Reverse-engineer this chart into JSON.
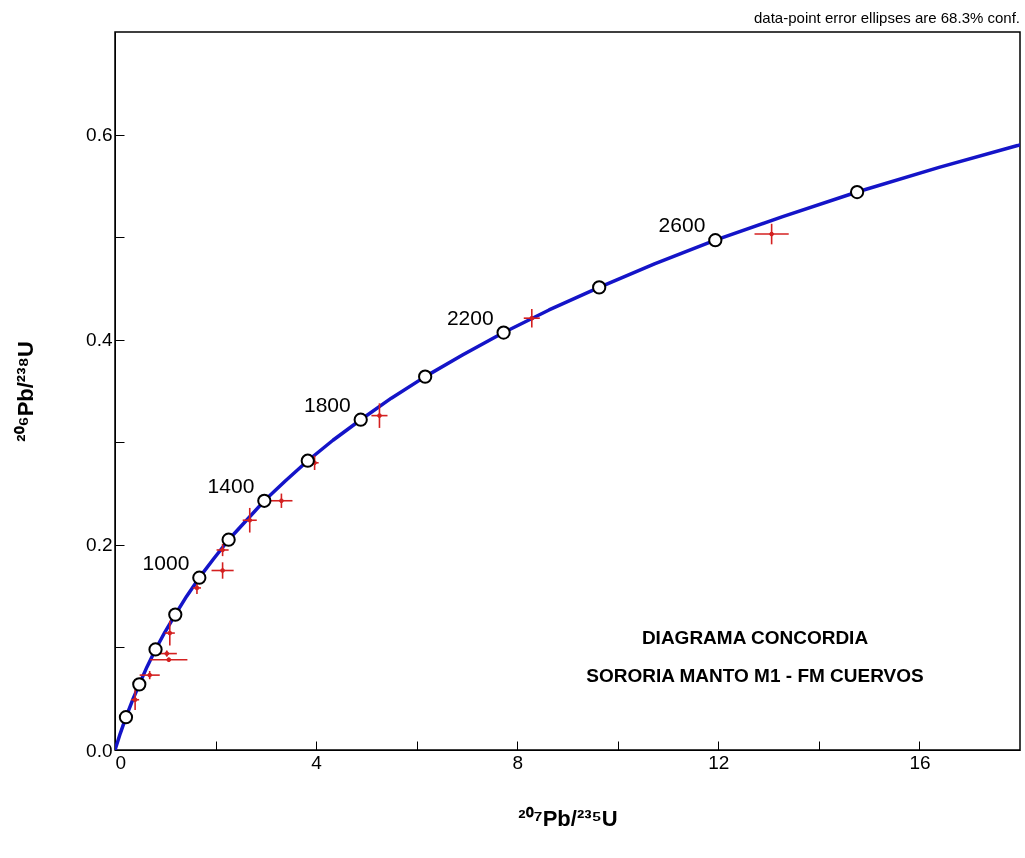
{
  "chart_data": {
    "type": "line",
    "title": "DIAGRAMA CONCORDIA",
    "subtitle": "SORORIA MANTO M1 - FM CUERVOS",
    "xlabel": "²⁰⁷Pb/²³⁵U",
    "ylabel": "²⁰⁶Pb/²³⁸U",
    "xlim": [
      0,
      18
    ],
    "ylim": [
      0,
      0.7
    ],
    "xticks": [
      0,
      {
        "value": 2,
        "label": null
      },
      4,
      {
        "value": 6,
        "label": null
      },
      8,
      {
        "value": 10,
        "label": null
      },
      12,
      {
        "value": 14,
        "label": null
      },
      16
    ],
    "yticks": [
      {
        "value": 0,
        "label": "0.0"
      },
      {
        "value": 0.1,
        "label": null
      },
      0.2,
      {
        "value": 0.3,
        "label": null
      },
      0.4,
      {
        "value": 0.5,
        "label": null
      },
      0.6
    ],
    "line_style": "solid",
    "series": [
      {
        "marker": "none",
        "color": "#1414c8",
        "x": [
          0,
          0.104,
          0.218,
          0.344,
          0.483,
          0.636,
          0.806,
          0.993,
          1.199,
          1.426,
          1.677,
          1.955,
          2.26,
          2.598,
          2.97,
          3.381,
          3.834,
          4.335,
          4.887,
          5.496,
          6.169,
          6.911,
          7.729,
          8.633,
          9.63,
          10.73,
          11.94,
          13.28,
          14.76,
          16.39,
          18
        ],
        "values": [
          0,
          0.016,
          0.032,
          0.048,
          0.064,
          0.081,
          0.098,
          0.115,
          0.132,
          0.15,
          0.168,
          0.186,
          0.205,
          0.223,
          0.243,
          0.262,
          0.282,
          0.302,
          0.322,
          0.343,
          0.364,
          0.385,
          0.407,
          0.429,
          0.451,
          0.474,
          0.497,
          0.52,
          0.544,
          0.568,
          0.59
        ]
      },
      {
        "type": "scatter",
        "color": "#d42020",
        "marker": "circle",
        "x": [
          13.06,
          8.29,
          5.26,
          3.97,
          3.31,
          2.68,
          2.14,
          2.14,
          1.63,
          1.09,
          1.03,
          1.07,
          0.69,
          0.4
        ],
        "values": [
          0.503,
          0.421,
          0.326,
          0.28,
          0.243,
          0.224,
          0.195,
          0.175,
          0.158,
          0.114,
          0.094,
          0.088,
          0.073,
          0.049
        ],
        "xerrors": [
          0.34,
          0.16,
          0.16,
          0.08,
          0.22,
          0.14,
          0.12,
          0.22,
          0.08,
          0.1,
          0.2,
          0.37,
          0.2,
          0.08
        ],
        "errors": [
          0.01,
          0.009,
          0.012,
          0.007,
          0.007,
          0.012,
          0.006,
          0.008,
          0.006,
          0.012,
          0.003,
          0.002,
          0.004,
          0.01
        ]
      },
      {
        "type": "scatter",
        "color": "#ffffff",
        "marker": "circle",
        "x": [
          0.218,
          0.483,
          0.806,
          1.199,
          1.677,
          2.26,
          2.97,
          3.834,
          4.887,
          6.169,
          7.729,
          9.63,
          11.94,
          14.76
        ],
        "values": [
          0.032,
          0.064,
          0.098,
          0.132,
          0.168,
          0.205,
          0.243,
          0.282,
          0.322,
          0.364,
          0.407,
          0.451,
          0.497,
          0.544
        ]
      }
    ],
    "annotations": [
      {
        "text": "1000",
        "x": 1.677,
        "y": 0.168
      },
      {
        "text": "1400",
        "x": 2.97,
        "y": 0.243
      },
      {
        "text": "1800",
        "x": 4.887,
        "y": 0.322
      },
      {
        "text": "2200",
        "x": 7.729,
        "y": 0.407
      },
      {
        "text": "2600",
        "x": 11.94,
        "y": 0.497
      },
      "data-point error ellipses are 68.3% conf."
    ]
  }
}
